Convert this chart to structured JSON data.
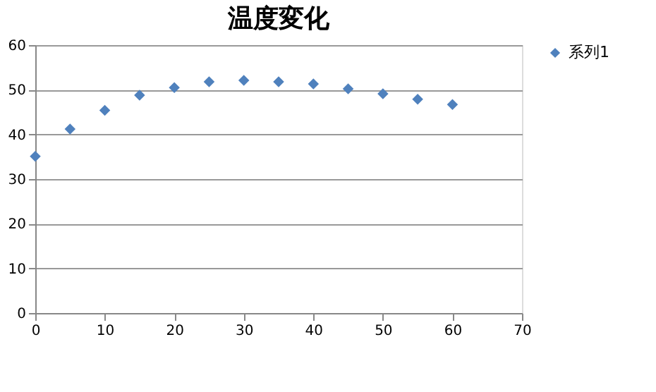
{
  "chart_data": {
    "type": "scatter",
    "title": "温度変化",
    "x": [
      0,
      5,
      10,
      15,
      20,
      25,
      30,
      35,
      40,
      45,
      50,
      55,
      60
    ],
    "series": [
      {
        "name": "系列1",
        "color": "#4f81bd",
        "values": [
          35.1,
          41.2,
          45.4,
          48.8,
          50.5,
          51.8,
          52.1,
          51.8,
          51.3,
          50.2,
          49.1,
          47.9,
          46.7
        ]
      }
    ],
    "xlim": [
      0,
      70
    ],
    "xticks": [
      0,
      10,
      20,
      30,
      40,
      50,
      60,
      70
    ],
    "ylim": [
      0,
      60
    ],
    "yticks": [
      0,
      10,
      20,
      30,
      40,
      50,
      60
    ],
    "grid": "y",
    "legend": "right",
    "marker": "diamond"
  }
}
